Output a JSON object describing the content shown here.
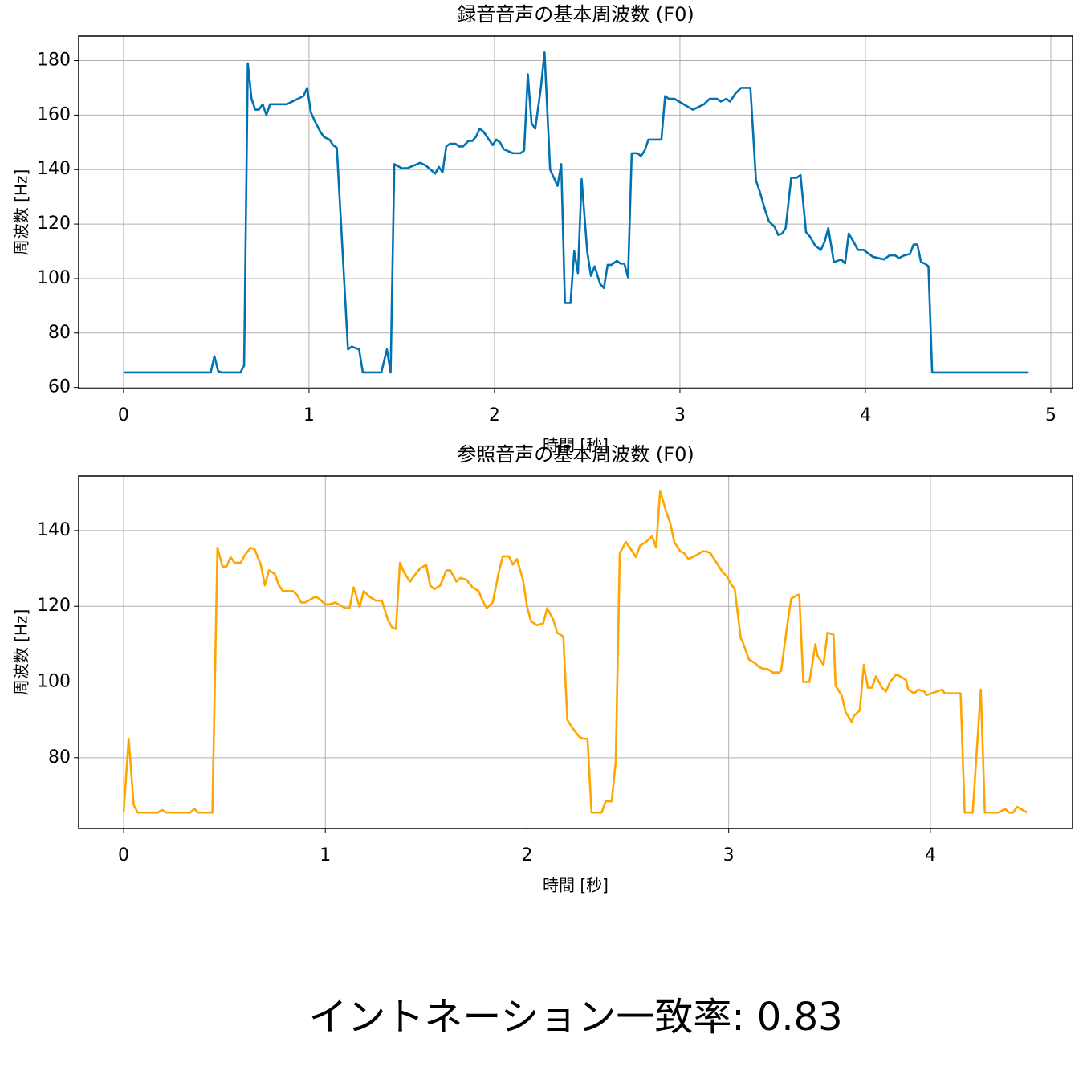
{
  "chart_data": [
    {
      "type": "line",
      "title": "録音音声の基本周波数 (F0)",
      "xlabel": "時間 [秒]",
      "ylabel": "周波数 [Hz]",
      "color": "#0072B2",
      "grid": true,
      "xlim": [
        -0.242,
        5.117
      ],
      "ylim": [
        59.6,
        189
      ],
      "xticks": [
        0,
        1,
        2,
        3,
        4,
        5
      ],
      "yticks": [
        60,
        80,
        100,
        120,
        140,
        160,
        180
      ],
      "x": [
        0,
        0.47,
        0.49,
        0.51,
        0.53,
        0.63,
        0.65,
        0.67,
        0.69,
        0.71,
        0.73,
        0.75,
        0.77,
        0.79,
        0.88,
        0.97,
        0.99,
        1.01,
        1.03,
        1.06,
        1.08,
        1.11,
        1.13,
        1.15,
        1.21,
        1.23,
        1.27,
        1.29,
        1.39,
        1.42,
        1.44,
        1.46,
        1.5,
        1.53,
        1.6,
        1.63,
        1.68,
        1.7,
        1.72,
        1.74,
        1.76,
        1.79,
        1.81,
        1.83,
        1.86,
        1.88,
        1.9,
        1.92,
        1.94,
        1.96,
        1.99,
        2.01,
        2.03,
        2.05,
        2.1,
        2.14,
        2.16,
        2.18,
        2.2,
        2.22,
        2.25,
        2.27,
        2.3,
        2.34,
        2.36,
        2.38,
        2.41,
        2.43,
        2.45,
        2.47,
        2.5,
        2.52,
        2.54,
        2.57,
        2.59,
        2.61,
        2.63,
        2.66,
        2.68,
        2.7,
        2.72,
        2.74,
        2.77,
        2.79,
        2.81,
        2.83,
        2.9,
        2.92,
        2.94,
        2.97,
        3.07,
        3.13,
        3.16,
        3.2,
        3.22,
        3.25,
        3.27,
        3.3,
        3.33,
        3.38,
        3.41,
        3.43,
        3.46,
        3.48,
        3.51,
        3.53,
        3.55,
        3.57,
        3.6,
        3.63,
        3.65,
        3.68,
        3.7,
        3.73,
        3.76,
        3.78,
        3.8,
        3.83,
        3.87,
        3.89,
        3.91,
        3.94,
        3.96,
        3.99,
        4.04,
        4.1,
        4.13,
        4.16,
        4.18,
        4.21,
        4.24,
        4.26,
        4.28,
        4.3,
        4.32,
        4.34,
        4.36,
        4.88
      ],
      "values": [
        65.5,
        65.5,
        71.5,
        66,
        65.5,
        65.5,
        68,
        179,
        166,
        162,
        162,
        164,
        160,
        164,
        164,
        167,
        170,
        161,
        158,
        154,
        152,
        151,
        149,
        148,
        74,
        75,
        74,
        65.5,
        65.5,
        74,
        65.5,
        142,
        140.5,
        140.5,
        142.5,
        141.5,
        138.5,
        141,
        139,
        148.5,
        149.5,
        149.5,
        148.5,
        148.5,
        150.5,
        150.5,
        152,
        155,
        154,
        152,
        149,
        151,
        150,
        147.5,
        146,
        146,
        147,
        175,
        157,
        155,
        170,
        183,
        140,
        134,
        142,
        91,
        91,
        110,
        102,
        136.5,
        110,
        101,
        104.5,
        98,
        96.5,
        105,
        105,
        106.5,
        105.5,
        105.5,
        100.5,
        146,
        146,
        145,
        147,
        151,
        151,
        167,
        166,
        166,
        162,
        164,
        166,
        166,
        165,
        166,
        165,
        168,
        170,
        170,
        136,
        132,
        125,
        121,
        119,
        116,
        116.5,
        118.5,
        137,
        137,
        138,
        117,
        115.5,
        112,
        110.5,
        113.5,
        118.5,
        106,
        107,
        105.5,
        116.5,
        113,
        110.5,
        110.5,
        108,
        107,
        108.5,
        108.5,
        107.5,
        108.5,
        109,
        112.5,
        112.5,
        106,
        105.5,
        104.5,
        65.5,
        65.5
      ]
    },
    {
      "type": "line",
      "title": "参照音声の基本周波数 (F0)",
      "xlabel": "時間 [秒]",
      "ylabel": "周波数 [Hz]",
      "color": "#FFA500",
      "grid": true,
      "xlim": [
        -0.223,
        4.705
      ],
      "ylim": [
        61.3,
        154.4
      ],
      "xticks": [
        0,
        1,
        2,
        3,
        4
      ],
      "yticks": [
        80,
        100,
        120,
        140
      ],
      "x": [
        0,
        0.025,
        0.05,
        0.07,
        0.17,
        0.19,
        0.21,
        0.33,
        0.35,
        0.37,
        0.44,
        0.465,
        0.49,
        0.51,
        0.53,
        0.55,
        0.58,
        0.6,
        0.63,
        0.65,
        0.68,
        0.7,
        0.72,
        0.75,
        0.77,
        0.79,
        0.84,
        0.86,
        0.88,
        0.9,
        0.95,
        0.97,
        1.0,
        1.02,
        1.05,
        1.1,
        1.12,
        1.14,
        1.17,
        1.19,
        1.22,
        1.25,
        1.28,
        1.31,
        1.33,
        1.35,
        1.37,
        1.39,
        1.42,
        1.44,
        1.47,
        1.5,
        1.52,
        1.54,
        1.57,
        1.6,
        1.62,
        1.65,
        1.67,
        1.7,
        1.73,
        1.76,
        1.78,
        1.8,
        1.83,
        1.86,
        1.88,
        1.91,
        1.93,
        1.95,
        1.98,
        2.0,
        2.02,
        2.05,
        2.08,
        2.1,
        2.13,
        2.15,
        2.18,
        2.2,
        2.23,
        2.26,
        2.28,
        2.3,
        2.32,
        2.37,
        2.39,
        2.42,
        2.44,
        2.46,
        2.49,
        2.51,
        2.54,
        2.56,
        2.59,
        2.62,
        2.64,
        2.66,
        2.69,
        2.71,
        2.73,
        2.76,
        2.78,
        2.8,
        2.84,
        2.87,
        2.89,
        2.91,
        2.94,
        2.97,
        2.99,
        3.01,
        3.03,
        3.06,
        3.07,
        3.1,
        3.13,
        3.15,
        3.17,
        3.19,
        3.22,
        3.25,
        3.26,
        3.29,
        3.31,
        3.34,
        3.35,
        3.37,
        3.4,
        3.43,
        3.44,
        3.47,
        3.49,
        3.52,
        3.53,
        3.56,
        3.58,
        3.61,
        3.62,
        3.65,
        3.67,
        3.69,
        3.71,
        3.73,
        3.76,
        3.78,
        3.8,
        3.83,
        3.85,
        3.88,
        3.89,
        3.92,
        3.94,
        3.97,
        3.98,
        4.06,
        4.07,
        4.15,
        4.17,
        4.21,
        4.25,
        4.27,
        4.34,
        4.37,
        4.39,
        4.41,
        4.43,
        4.48
      ],
      "values": [
        65.5,
        85,
        67.5,
        65.5,
        65.5,
        66.2,
        65.5,
        65.5,
        66.5,
        65.5,
        65.5,
        135.5,
        130.5,
        130.5,
        133,
        131.5,
        131.5,
        133.5,
        135.5,
        135,
        131,
        125.5,
        129.5,
        128.5,
        125.5,
        124,
        124,
        123,
        121,
        121,
        122.5,
        122,
        120.5,
        120.5,
        121,
        119.5,
        119.5,
        125,
        119.8,
        124,
        122.5,
        121.5,
        121.5,
        116.5,
        114.5,
        114,
        131.5,
        129,
        126.5,
        128,
        130,
        131,
        125.5,
        124.5,
        125.5,
        129.5,
        129.5,
        126.5,
        127.5,
        127,
        125,
        124,
        121.5,
        119.5,
        121,
        129,
        133.2,
        133.2,
        131,
        132.5,
        127,
        120,
        116,
        115,
        115.5,
        119.5,
        116.5,
        113,
        112,
        90,
        87.5,
        85.5,
        85,
        85,
        65.5,
        65.5,
        68.5,
        68.5,
        79,
        134,
        137,
        135.5,
        133,
        136,
        137,
        138.5,
        135.5,
        150.5,
        145,
        142,
        137,
        134.5,
        134,
        132.5,
        133.5,
        134.5,
        134.5,
        134,
        131.5,
        129,
        128,
        126,
        124.5,
        111.5,
        110.5,
        106,
        105,
        104,
        103.5,
        103.5,
        102.5,
        102.5,
        103,
        115,
        122,
        123,
        123,
        100,
        100,
        110,
        107,
        104.5,
        113,
        112.5,
        99,
        96.5,
        92,
        89.5,
        91,
        92.5,
        104.5,
        98.5,
        98.5,
        101.5,
        98.5,
        97.5,
        100,
        102,
        101.5,
        100.5,
        98,
        97,
        98,
        97.5,
        96.5,
        98,
        97,
        97,
        65.5,
        65.5,
        98,
        65.5,
        65.5,
        66.5,
        65.5,
        65.5,
        67,
        65.5
      ]
    }
  ],
  "score_text": "イントネーション一致率: 0.83"
}
